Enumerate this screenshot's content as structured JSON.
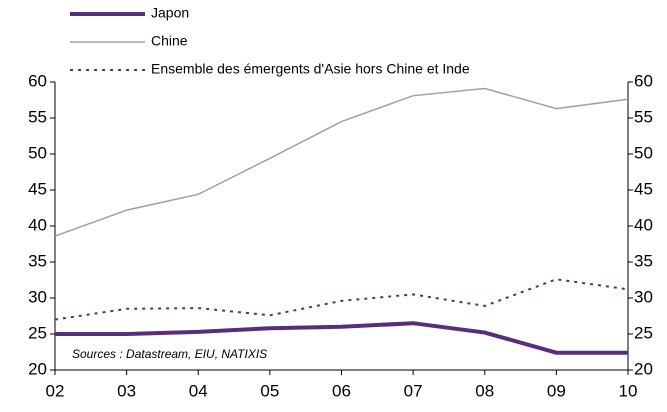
{
  "chart_data": {
    "type": "line",
    "categories": [
      "02",
      "03",
      "04",
      "05",
      "06",
      "07",
      "08",
      "09",
      "10"
    ],
    "series": [
      {
        "name": "Japon",
        "color": "#5a2d7c",
        "style": "solid",
        "values": [
          25,
          25,
          25.3,
          25.8,
          26,
          26.5,
          25.2,
          22.4,
          22.4
        ]
      },
      {
        "name": "Chine",
        "color": "#a0a0a0",
        "style": "solid",
        "values": [
          38.6,
          42.2,
          44.4,
          49.4,
          54.5,
          58.1,
          59.1,
          56.3,
          57.6
        ]
      },
      {
        "name": "Ensemble des émergents d'Asie hors Chine et Inde",
        "color": "#5a2d7c",
        "style": "dotted",
        "values": [
          27,
          28.5,
          28.6,
          27.6,
          29.6,
          30.5,
          28.9,
          32.6,
          31.2
        ]
      }
    ],
    "ylim": [
      20,
      60
    ],
    "yticks": [
      20,
      25,
      30,
      35,
      40,
      45,
      50,
      55,
      60
    ],
    "y2lim": [
      20,
      60
    ],
    "y2ticks": [
      20,
      25,
      30,
      35,
      40,
      45,
      50,
      55,
      60
    ],
    "annotation": "Sources : Datastream, EIU, NATIXIS",
    "legend": "top-left"
  }
}
